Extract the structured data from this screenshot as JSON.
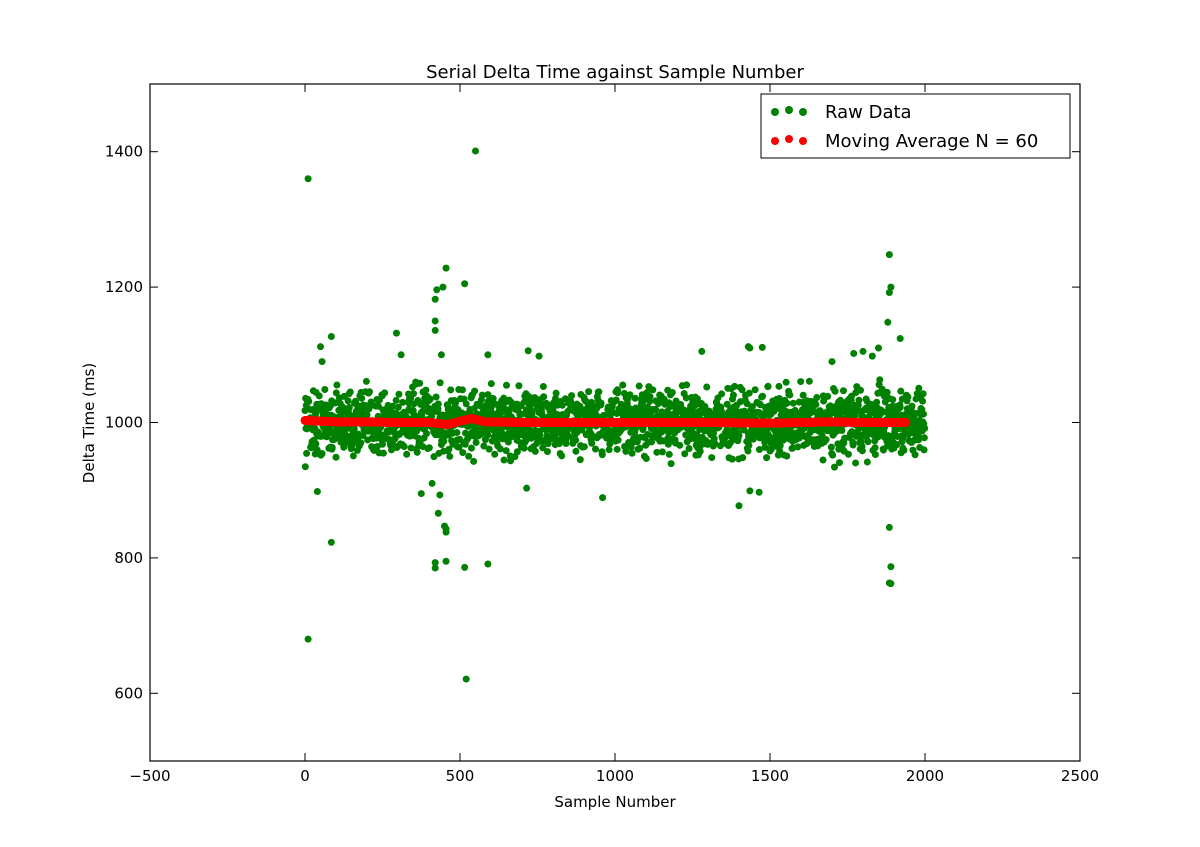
{
  "chart_data": {
    "type": "scatter",
    "title": "Serial Delta Time against Sample Number",
    "xlabel": "Sample Number",
    "ylabel": "Delta Time (ms)",
    "xlim": [
      -500,
      2500
    ],
    "ylim": [
      500,
      1500
    ],
    "xticks": [
      -500,
      0,
      500,
      1000,
      1500,
      2000,
      2500
    ],
    "yticks": [
      600,
      800,
      1000,
      1200,
      1400
    ],
    "grid": false,
    "legend_position": "top-right",
    "sample_count": 2000,
    "series": [
      {
        "name": "Raw Data",
        "color": "#008000",
        "typical_range": [
          930,
          1070
        ],
        "outliers": [
          {
            "x": 10,
            "y": 1360
          },
          {
            "x": 10,
            "y": 680
          },
          {
            "x": 40,
            "y": 898
          },
          {
            "x": 50,
            "y": 1112
          },
          {
            "x": 55,
            "y": 1090
          },
          {
            "x": 85,
            "y": 823
          },
          {
            "x": 85,
            "y": 1127
          },
          {
            "x": 295,
            "y": 1132
          },
          {
            "x": 310,
            "y": 1100
          },
          {
            "x": 375,
            "y": 895
          },
          {
            "x": 410,
            "y": 910
          },
          {
            "x": 420,
            "y": 1136
          },
          {
            "x": 420,
            "y": 1150
          },
          {
            "x": 420,
            "y": 1182
          },
          {
            "x": 425,
            "y": 1196
          },
          {
            "x": 430,
            "y": 866
          },
          {
            "x": 420,
            "y": 793
          },
          {
            "x": 420,
            "y": 785
          },
          {
            "x": 435,
            "y": 893
          },
          {
            "x": 440,
            "y": 1100
          },
          {
            "x": 445,
            "y": 1200
          },
          {
            "x": 450,
            "y": 847
          },
          {
            "x": 455,
            "y": 843
          },
          {
            "x": 455,
            "y": 838
          },
          {
            "x": 455,
            "y": 795
          },
          {
            "x": 455,
            "y": 1228
          },
          {
            "x": 515,
            "y": 1205
          },
          {
            "x": 515,
            "y": 786
          },
          {
            "x": 520,
            "y": 621
          },
          {
            "x": 550,
            "y": 1401
          },
          {
            "x": 590,
            "y": 1100
          },
          {
            "x": 590,
            "y": 791
          },
          {
            "x": 715,
            "y": 903
          },
          {
            "x": 720,
            "y": 1106
          },
          {
            "x": 755,
            "y": 1098
          },
          {
            "x": 960,
            "y": 889
          },
          {
            "x": 1280,
            "y": 1105
          },
          {
            "x": 1400,
            "y": 877
          },
          {
            "x": 1430,
            "y": 1112
          },
          {
            "x": 1435,
            "y": 1110
          },
          {
            "x": 1435,
            "y": 899
          },
          {
            "x": 1465,
            "y": 897
          },
          {
            "x": 1475,
            "y": 1111
          },
          {
            "x": 1700,
            "y": 1090
          },
          {
            "x": 1770,
            "y": 1102
          },
          {
            "x": 1800,
            "y": 1105
          },
          {
            "x": 1830,
            "y": 1098
          },
          {
            "x": 1850,
            "y": 1110
          },
          {
            "x": 1880,
            "y": 1148
          },
          {
            "x": 1885,
            "y": 1192
          },
          {
            "x": 1885,
            "y": 1248
          },
          {
            "x": 1890,
            "y": 1200
          },
          {
            "x": 1885,
            "y": 845
          },
          {
            "x": 1890,
            "y": 787
          },
          {
            "x": 1885,
            "y": 763
          },
          {
            "x": 1890,
            "y": 762
          },
          {
            "x": 1920,
            "y": 1124
          }
        ]
      },
      {
        "name": "Moving Average N = 60",
        "color": "#ff0000",
        "x_range": [
          0,
          1940
        ],
        "points": [
          {
            "x": 0,
            "y": 1003
          },
          {
            "x": 100,
            "y": 1001
          },
          {
            "x": 200,
            "y": 1001
          },
          {
            "x": 300,
            "y": 1000
          },
          {
            "x": 400,
            "y": 1000
          },
          {
            "x": 460,
            "y": 997
          },
          {
            "x": 500,
            "y": 1002
          },
          {
            "x": 540,
            "y": 1006
          },
          {
            "x": 580,
            "y": 1001
          },
          {
            "x": 700,
            "y": 1000
          },
          {
            "x": 900,
            "y": 1000
          },
          {
            "x": 1100,
            "y": 1000
          },
          {
            "x": 1300,
            "y": 1000
          },
          {
            "x": 1500,
            "y": 999
          },
          {
            "x": 1700,
            "y": 1001
          },
          {
            "x": 1800,
            "y": 1000
          },
          {
            "x": 1940,
            "y": 1000
          }
        ]
      }
    ]
  }
}
